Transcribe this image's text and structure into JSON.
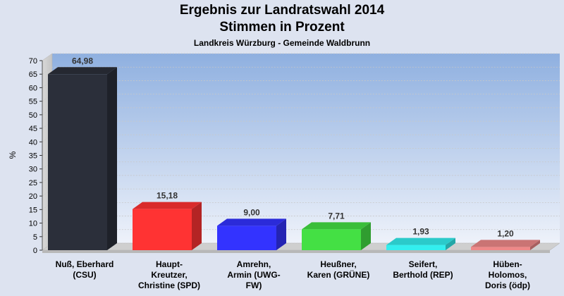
{
  "chart_data": {
    "type": "bar",
    "title": "Ergebnis zur Landratswahl 2014",
    "title2": "Stimmen in Prozent",
    "subtitle": "Landkreis Würzburg - Gemeinde Waldbrunn",
    "ylabel": "%",
    "ylim": [
      0,
      70
    ],
    "yticks": [
      0,
      5,
      10,
      15,
      20,
      25,
      30,
      35,
      40,
      45,
      50,
      55,
      60,
      65,
      70
    ],
    "grid": true,
    "categories": [
      [
        "Nuß, Eberhard",
        "(CSU)"
      ],
      [
        "Haupt-",
        "Kreutzer,",
        "Christine (SPD)"
      ],
      [
        "Amrehn,",
        "Armin (UWG-",
        "FW)"
      ],
      [
        "Heußner,",
        "Karen (GRÜNE)"
      ],
      [
        "Seifert,",
        "Berthold (REP)"
      ],
      [
        "Hüben-",
        "Holomos,",
        "Doris (ödp)"
      ]
    ],
    "values": [
      64.98,
      15.18,
      9.0,
      7.71,
      1.93,
      1.2
    ],
    "value_labels": [
      "64,98",
      "15,18",
      "9,00",
      "7,71",
      "1,93",
      "1,20"
    ],
    "colors": [
      "#2b2f3a",
      "#ff3333",
      "#3333ff",
      "#44e044",
      "#33eeee",
      "#ee8888"
    ]
  }
}
